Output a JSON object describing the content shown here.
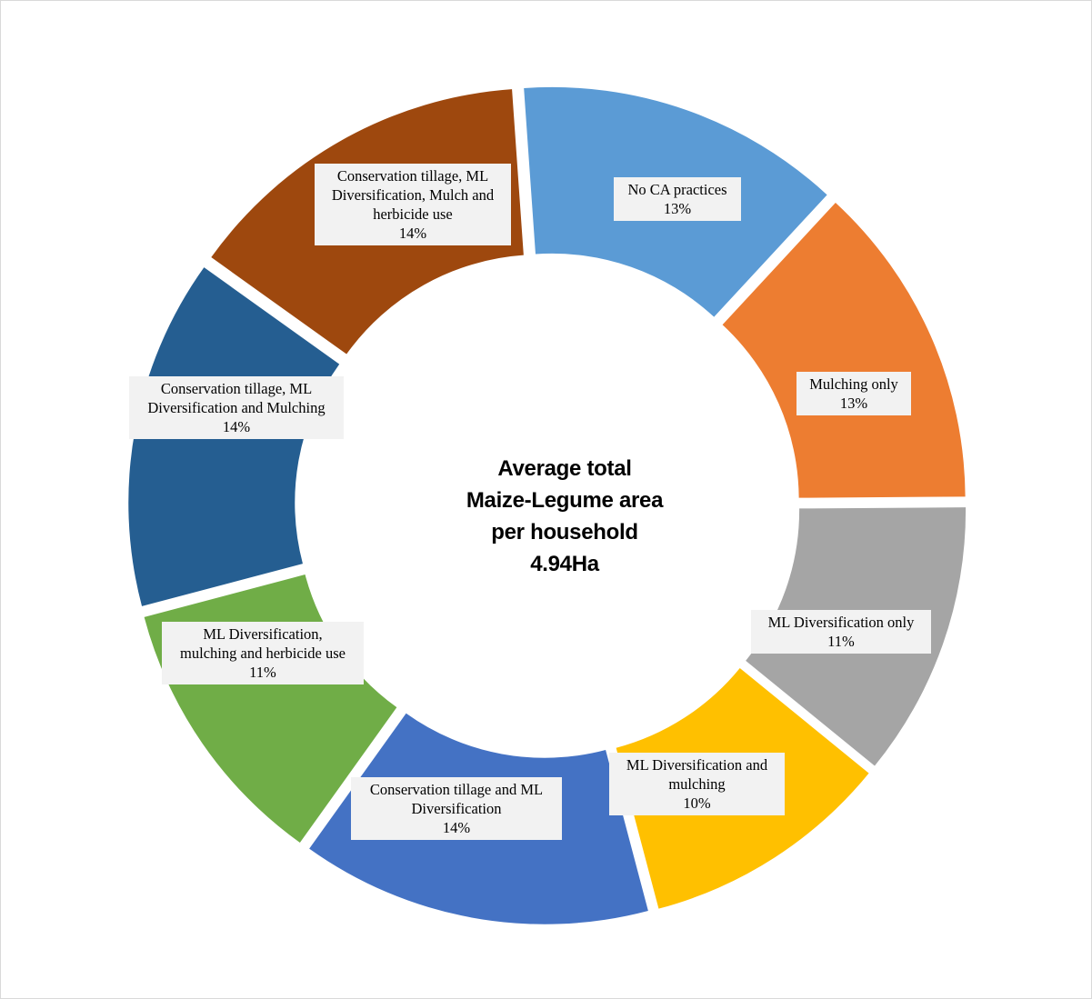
{
  "chart_data": {
    "type": "pie",
    "style": "exploded-doughnut",
    "center_text": [
      "Average total",
      "Maize-Legume area",
      "per household",
      "4.94Ha"
    ],
    "slices": [
      {
        "label": [
          "No CA practices"
        ],
        "value_label": "13%",
        "value": 13,
        "color": "#5b9bd5"
      },
      {
        "label": [
          "Mulching only"
        ],
        "value_label": "13%",
        "value": 13,
        "color": "#ed7d31"
      },
      {
        "label": [
          "ML Diversification only"
        ],
        "value_label": "11%",
        "value": 11,
        "color": "#a5a5a5"
      },
      {
        "label": [
          "ML Diversification and",
          "mulching"
        ],
        "value_label": "10%",
        "value": 10,
        "color": "#ffc000"
      },
      {
        "label": [
          "Conservation tillage and ML",
          "Diversification"
        ],
        "value_label": "14%",
        "value": 14,
        "color": "#4472c4"
      },
      {
        "label": [
          "ML Diversification,",
          "mulching and herbicide use"
        ],
        "value_label": "11%",
        "value": 11,
        "color": "#70ad47"
      },
      {
        "label": [
          "Conservation tillage, ML",
          "Diversification and Mulching"
        ],
        "value_label": "14%",
        "value": 14,
        "color": "#255e91"
      },
      {
        "label": [
          "Conservation tillage, ML",
          "Diversification, Mulch and",
          "herbicide use"
        ],
        "value_label": "14%",
        "value": 14,
        "color": "#9e480e"
      }
    ]
  }
}
